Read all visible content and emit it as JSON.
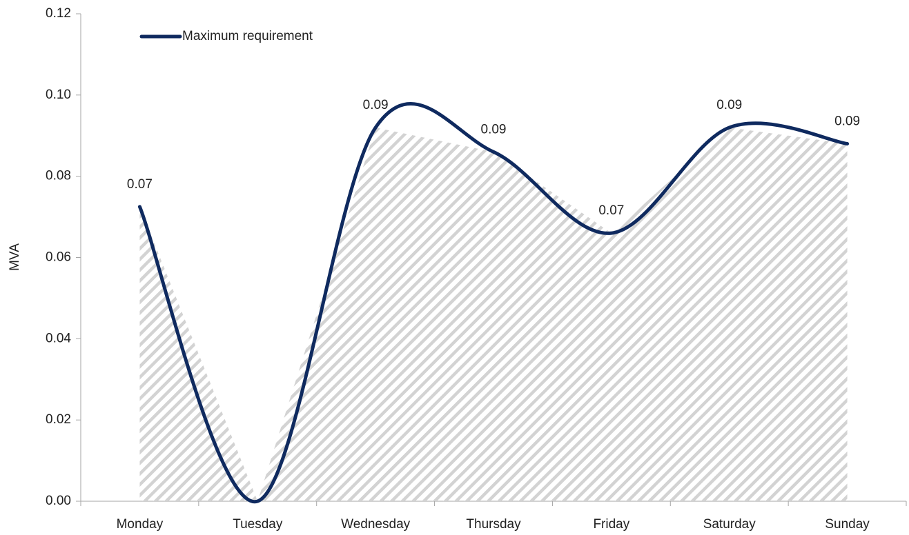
{
  "chart_data": {
    "type": "line",
    "y_label": "MVA",
    "categories": [
      "Monday",
      "Tuesday",
      "Wednesday",
      "Thursday",
      "Friday",
      "Saturday",
      "Sunday"
    ],
    "series": [
      {
        "name": "Maximum requirement",
        "color": "#0f2a5f",
        "values": [
          0.0725,
          0,
          0.092,
          0.086,
          0.066,
          0.092,
          0.088
        ],
        "value_labels": [
          "0.07",
          null,
          "0.09",
          "0.09",
          "0.07",
          "0.09",
          "0.09"
        ]
      }
    ],
    "ylim": [
      0,
      0.12
    ],
    "yticks": [
      {
        "value": 0,
        "label": "0.00"
      },
      0.02,
      0.04,
      0.06,
      0.08,
      {
        "value": 0.1,
        "label": "0.10"
      },
      0.12
    ],
    "area_fill": "hatch",
    "legend": "upper left",
    "grid": false
  }
}
